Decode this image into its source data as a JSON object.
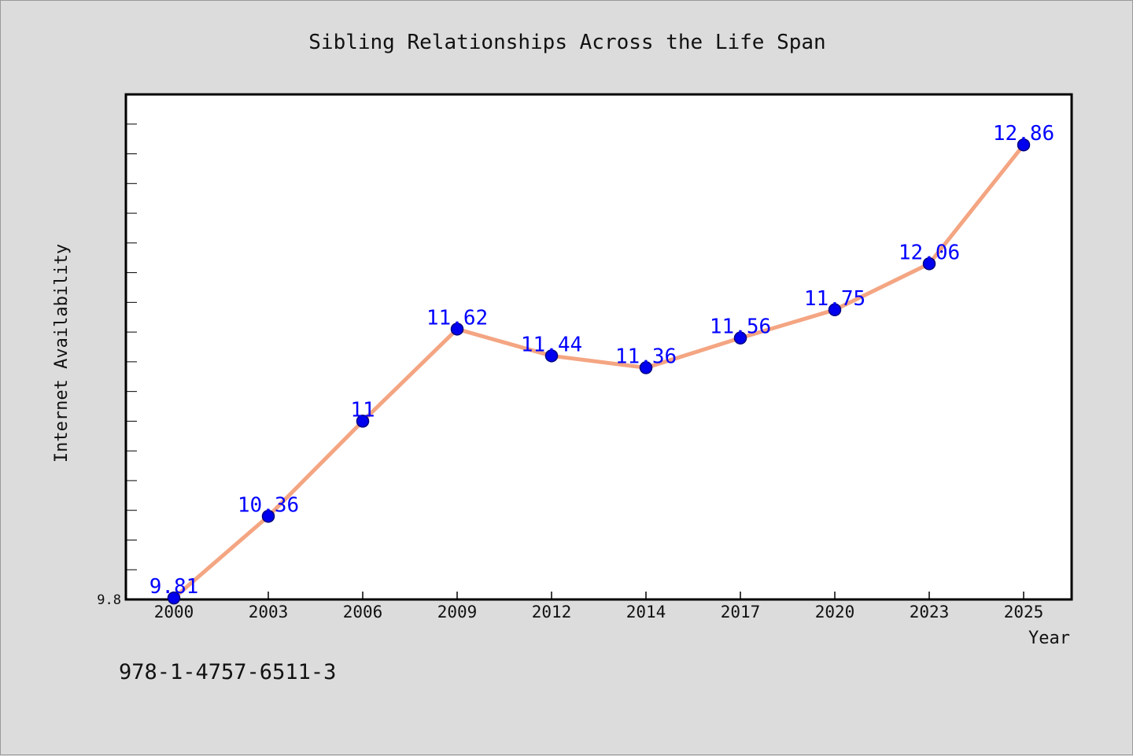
{
  "chart_data": {
    "type": "line",
    "title": "Sibling Relationships Across the Life Span",
    "xlabel": "Year",
    "ylabel": "Internet Availability",
    "categories": [
      "2000",
      "2003",
      "2006",
      "2009",
      "2012",
      "2014",
      "2017",
      "2020",
      "2023",
      "2025"
    ],
    "series": [
      {
        "values": [
          9.81,
          10.36,
          11,
          11.62,
          11.44,
          11.36,
          11.56,
          11.75,
          12.06,
          12.86
        ],
        "labels": [
          "9.81",
          "10.36",
          "11",
          "11.62",
          "11.44",
          "11.36",
          "11.56",
          "11.75",
          "12.06",
          "12.86"
        ]
      }
    ],
    "ylim": [
      9.8,
      13.2
    ],
    "yticks": [
      "9.8"
    ],
    "grid": false,
    "legend": "none",
    "colors": {
      "line": "#f4a582",
      "marker": "#0000ee",
      "marker_edge": "#000080",
      "data_label": "#0000ff",
      "plot_background": "#ffffff",
      "figure_background": "#dcdcdc"
    }
  },
  "annotation": {
    "isbn": "978-1-4757-6511-3"
  }
}
